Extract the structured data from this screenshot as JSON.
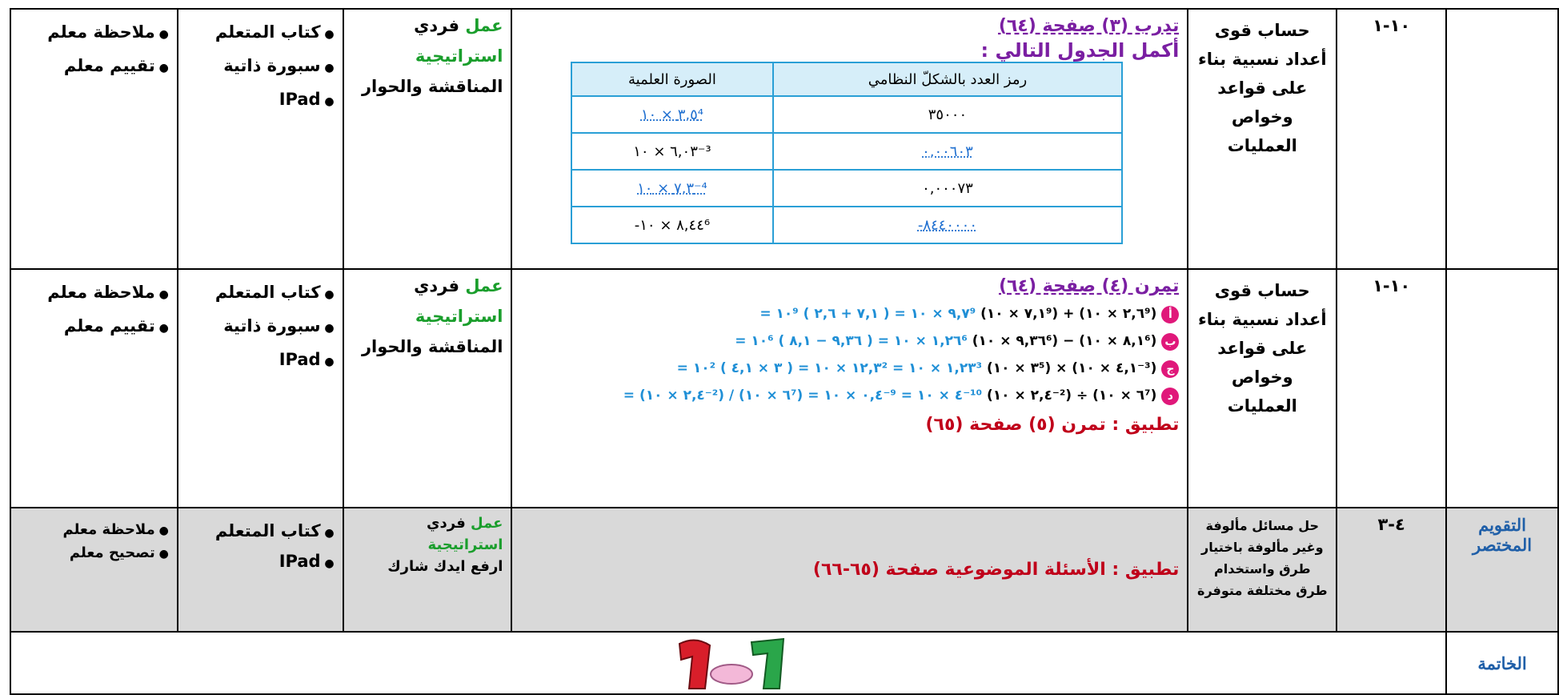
{
  "rows": [
    {
      "stage": "",
      "code": "١٠-١",
      "objective": "حساب قوى أعداد نسبية بناء على قواعد وخواص العمليات",
      "content": {
        "title": "تدرب (٣) صفحة (٦٤)",
        "instruction": "أكمل الجدول التالي :",
        "table": {
          "headers": [
            "رمز العدد بالشكلّ النظامي",
            "الصورة العلمية"
          ],
          "rows": [
            [
              "٣٥٠٠٠",
              "٣,٥ × ١٠⁴"
            ],
            [
              "٠,٠٠٦٠٣",
              "٦,٠٣ × ١٠⁻³"
            ],
            [
              "٠,٠٠٠٧٣",
              "٧,٣ × ١٠⁻⁴"
            ],
            [
              "-٨٤٤٠٠٠٠",
              "-٨,٤٤ × ١٠⁶"
            ]
          ]
        }
      },
      "strategy": {
        "label": "عمل",
        "work": "فردي",
        "name": "استراتيجية",
        "method": "المناقشة والحوار"
      },
      "resources": [
        "كتاب المتعلم",
        "سبورة ذاتية",
        "IPad"
      ],
      "assessment": [
        "ملاحظة معلم",
        "تقييم معلم"
      ]
    },
    {
      "stage": "",
      "code": "١٠-١",
      "objective": "حساب قوى أعداد نسبية بناء على قواعد وخواص العمليات",
      "content": {
        "title": "تمرن (٤) صفحة (٦٤)",
        "equations": [
          {
            "letter": "أ",
            "given": "(٧,١ × ١٠⁹) + (٢,٦ × ١٠⁹)",
            "solution": "= ١٠⁹ ( ٧,١ + ٢,٦ ) = ٩,٧ × ١٠⁹"
          },
          {
            "letter": "ب",
            "given": "(٩,٣٦ × ١٠⁶) − (٨,١ × ١٠⁶)",
            "solution": "= ١٠⁶ ( ٩,٣٦ − ٨,١ ) = ١,٢٦ × ١٠⁶"
          },
          {
            "letter": "ج",
            "given": "(٣ × ١٠⁵) × (٤,١ × ١٠⁻³)",
            "solution": "= ١٠² ( ٣ × ٤,١ ) = ١٢,٣ × ١٠² = ١,٢٣ × ١٠³"
          },
          {
            "letter": "د",
            "given": "(٢,٤ × ١٠⁻²) ÷ (٦ × ١٠⁷)",
            "solution": "= (٢,٤ × ١٠⁻²) / (٦ × ١٠⁷) = ٠,٤ × ١٠⁻⁹ = ٤ × ١٠⁻¹⁰"
          }
        ],
        "application": "تطبيق : تمرن (٥) صفحة (٦٥)"
      },
      "strategy": {
        "label": "عمل",
        "work": "فردي",
        "name": "استراتيجية",
        "method": "المناقشة والحوار"
      },
      "resources": [
        "كتاب المتعلم",
        "سبورة ذاتية",
        "IPad"
      ],
      "assessment": [
        "ملاحظة معلم",
        "تقييم معلم"
      ]
    },
    {
      "stage": "التقويم المختصر",
      "code": "٤-٣",
      "objective": "حل مسائل مألوفة وغير مألوفة باختيار طرق واستخدام طرق مختلفة متوفرة",
      "content": {
        "application": "تطبيق : الأسئلة الموضوعية صفحة (٦٥-٦٦)"
      },
      "strategy": {
        "label": "عمل",
        "work": "فردي",
        "name": "استراتيجية",
        "method": "ارفع ايدك شارك"
      },
      "resources": [
        "كتاب المتعلم",
        "IPad"
      ],
      "assessment": [
        "ملاحظة معلم",
        "تصحيح معلم"
      ]
    },
    {
      "stage": "الخاتمة"
    }
  ]
}
